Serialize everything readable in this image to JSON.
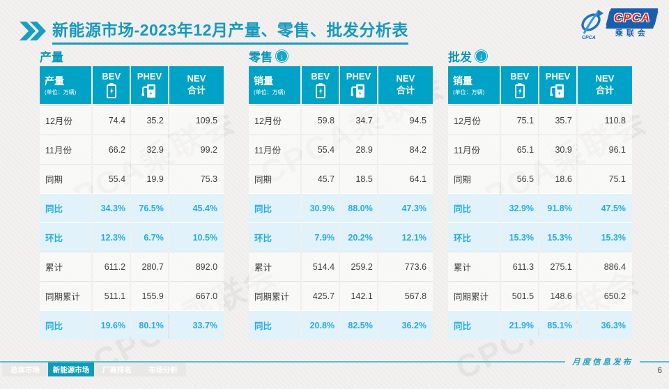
{
  "slide": {
    "title": "新能源市场-2023年12月产量、零售、批发分析表",
    "watermark": "CPCA乘联会",
    "footer_note": "月度信息发布",
    "page_number": "6"
  },
  "logo": {
    "acronym": "CPCA",
    "cn_name": "乘联会",
    "icon_caption": "CPCA"
  },
  "nav_tabs": [
    {
      "label": "总体市场",
      "active": false
    },
    {
      "label": "新能源市场",
      "active": true
    },
    {
      "label": "厂商排名",
      "active": false
    },
    {
      "label": "市场分析",
      "active": false
    }
  ],
  "colors": {
    "accent_teal": "#00a3c5",
    "title_teal": "#1699bd",
    "percent_text": "#29abe2",
    "percent_row_bg": "#e1f2fa",
    "logo_blue": "#1a5fae",
    "logo_red": "#d8281e"
  },
  "chart_data": [
    {
      "type": "table",
      "section_title": "产量",
      "has_arrow_icon": false,
      "header": {
        "label": "产量",
        "unit": "(单位：万辆)",
        "col1": "BEV",
        "col2": "PHEV",
        "col3_line1": "NEV",
        "col3_line2": "合计"
      },
      "rows": [
        {
          "label": "12月份",
          "type": "normal",
          "values": [
            "74.4",
            "35.2",
            "109.5"
          ]
        },
        {
          "label": "11月份",
          "type": "normal",
          "values": [
            "66.2",
            "32.9",
            "99.2"
          ]
        },
        {
          "label": "同期",
          "type": "normal",
          "values": [
            "55.4",
            "19.9",
            "75.3"
          ]
        },
        {
          "label": "同比",
          "type": "percent",
          "values": [
            "34.3%",
            "76.5%",
            "45.4%"
          ]
        },
        {
          "label": "环比",
          "type": "percent",
          "values": [
            "12.3%",
            "6.7%",
            "10.5%"
          ]
        },
        {
          "label": "累计",
          "type": "normal",
          "values": [
            "611.2",
            "280.7",
            "892.0"
          ]
        },
        {
          "label": "同期累计",
          "type": "normal",
          "values": [
            "511.1",
            "155.9",
            "667.0"
          ]
        },
        {
          "label": "同比",
          "type": "percent",
          "values": [
            "19.6%",
            "80.1%",
            "33.7%"
          ]
        }
      ]
    },
    {
      "type": "table",
      "section_title": "零售",
      "has_arrow_icon": true,
      "header": {
        "label": "销量",
        "unit": "(单位：万辆)",
        "col1": "BEV",
        "col2": "PHEV",
        "col3_line1": "NEV",
        "col3_line2": "合计"
      },
      "rows": [
        {
          "label": "12月份",
          "type": "normal",
          "values": [
            "59.8",
            "34.7",
            "94.5"
          ]
        },
        {
          "label": "11月份",
          "type": "normal",
          "values": [
            "55.4",
            "28.9",
            "84.2"
          ]
        },
        {
          "label": "同期",
          "type": "normal",
          "values": [
            "45.7",
            "18.5",
            "64.1"
          ]
        },
        {
          "label": "同比",
          "type": "percent",
          "values": [
            "30.9%",
            "88.0%",
            "47.3%"
          ]
        },
        {
          "label": "环比",
          "type": "percent",
          "values": [
            "7.9%",
            "20.2%",
            "12.1%"
          ]
        },
        {
          "label": "累计",
          "type": "normal",
          "values": [
            "514.4",
            "259.2",
            "773.6"
          ]
        },
        {
          "label": "同期累计",
          "type": "normal",
          "values": [
            "425.7",
            "142.1",
            "567.8"
          ]
        },
        {
          "label": "同比",
          "type": "percent",
          "values": [
            "20.8%",
            "82.5%",
            "36.2%"
          ]
        }
      ]
    },
    {
      "type": "table",
      "section_title": "批发",
      "has_arrow_icon": true,
      "header": {
        "label": "销量",
        "unit": "(单位：万辆)",
        "col1": "BEV",
        "col2": "PHEV",
        "col3_line1": "NEV",
        "col3_line2": "合计"
      },
      "rows": [
        {
          "label": "12月份",
          "type": "normal",
          "values": [
            "75.1",
            "35.7",
            "110.8"
          ]
        },
        {
          "label": "11月份",
          "type": "normal",
          "values": [
            "65.1",
            "30.9",
            "96.1"
          ]
        },
        {
          "label": "同期",
          "type": "normal",
          "values": [
            "56.5",
            "18.6",
            "75.1"
          ]
        },
        {
          "label": "同比",
          "type": "percent",
          "values": [
            "32.9%",
            "91.8%",
            "47.5%"
          ]
        },
        {
          "label": "环比",
          "type": "percent",
          "values": [
            "15.3%",
            "15.3%",
            "15.3%"
          ]
        },
        {
          "label": "累计",
          "type": "normal",
          "values": [
            "611.3",
            "275.1",
            "886.4"
          ]
        },
        {
          "label": "同期累计",
          "type": "normal",
          "values": [
            "501.5",
            "148.6",
            "650.2"
          ]
        },
        {
          "label": "同比",
          "type": "percent",
          "values": [
            "21.9%",
            "85.1%",
            "36.3%"
          ]
        }
      ]
    }
  ]
}
